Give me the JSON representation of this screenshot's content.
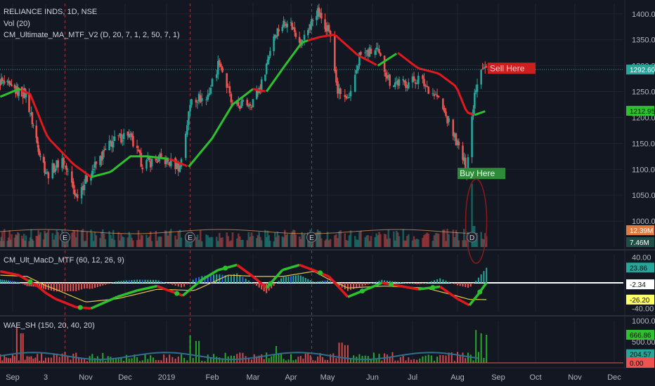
{
  "header": {
    "symbol": "RELIANCE INDS, 1D, NSE",
    "volume_label": "Vol (20)",
    "ma_label": "CM_Ultimate_MA_MTF_V2 (D, 20, 7, 1, 2, 50, 7, 1)"
  },
  "colors": {
    "background": "#131722",
    "grid": "#1f2431",
    "up": "#26a69a",
    "down": "#ef5350",
    "ma_red": "#e0191e",
    "ma_green": "#2dc22d",
    "sell": "#cc1f1f",
    "buy": "#2e8b3a"
  },
  "chart_data": [
    {
      "type": "candlestick",
      "title": "RELIANCE INDS, 1D, NSE",
      "ylim": [
        950,
        1420
      ],
      "y_ticks": [
        "1400.00",
        "1350.00",
        "1300.00",
        "1250.00",
        "1200.00",
        "1150.00",
        "1100.00",
        "1050.00",
        "1000.00"
      ],
      "y_tick_values": [
        1400,
        1350,
        1300,
        1250,
        1200,
        1150,
        1100,
        1050,
        1000
      ],
      "x_ticks": [
        "Sep",
        "3",
        "Nov",
        "Dec",
        "2019",
        "Feb",
        "Mar",
        "Apr",
        "May",
        "Jun",
        "Jul",
        "Aug",
        "Sep",
        "Oct",
        "Nov",
        "Dec"
      ],
      "last_price_label": "1292.60",
      "last_price": 1292.6,
      "ma_value_label": "1212.95",
      "ma_value": 1212.95,
      "close_path": [
        {
          "date": "2018-08-20",
          "close": 1270
        },
        {
          "date": "2018-08-31",
          "close": 1255
        },
        {
          "date": "2018-09-14",
          "close": 1245
        },
        {
          "date": "2018-09-25",
          "close": 1150
        },
        {
          "date": "2018-10-04",
          "close": 1090
        },
        {
          "date": "2018-10-15",
          "close": 1120
        },
        {
          "date": "2018-10-25",
          "close": 1050
        },
        {
          "date": "2018-11-05",
          "close": 1095
        },
        {
          "date": "2018-11-20",
          "close": 1150
        },
        {
          "date": "2018-12-03",
          "close": 1170
        },
        {
          "date": "2018-12-14",
          "close": 1110
        },
        {
          "date": "2018-12-28",
          "close": 1120
        },
        {
          "date": "2019-01-10",
          "close": 1105
        },
        {
          "date": "2019-01-18",
          "close": 1240
        },
        {
          "date": "2019-01-28",
          "close": 1235
        },
        {
          "date": "2019-02-06",
          "close": 1310
        },
        {
          "date": "2019-02-15",
          "close": 1220
        },
        {
          "date": "2019-02-28",
          "close": 1230
        },
        {
          "date": "2019-03-08",
          "close": 1265
        },
        {
          "date": "2019-03-18",
          "close": 1360
        },
        {
          "date": "2019-03-29",
          "close": 1390
        },
        {
          "date": "2019-04-10",
          "close": 1345
        },
        {
          "date": "2019-04-22",
          "close": 1405
        },
        {
          "date": "2019-05-02",
          "close": 1370
        },
        {
          "date": "2019-05-08",
          "close": 1250
        },
        {
          "date": "2019-05-16",
          "close": 1230
        },
        {
          "date": "2019-05-23",
          "close": 1320
        },
        {
          "date": "2019-06-04",
          "close": 1330
        },
        {
          "date": "2019-06-14",
          "close": 1270
        },
        {
          "date": "2019-06-25",
          "close": 1265
        },
        {
          "date": "2019-07-05",
          "close": 1275
        },
        {
          "date": "2019-07-18",
          "close": 1240
        },
        {
          "date": "2019-07-29",
          "close": 1170
        },
        {
          "date": "2019-08-05",
          "close": 1120
        },
        {
          "date": "2019-08-08",
          "close": 1100
        },
        {
          "date": "2019-08-14",
          "close": 1250
        },
        {
          "date": "2019-08-19",
          "close": 1300
        },
        {
          "date": "2019-08-23",
          "close": 1292.6
        }
      ],
      "ma_path": [
        {
          "date": "2018-08-20",
          "value": 1240
        },
        {
          "date": "2018-09-07",
          "value": 1255
        },
        {
          "date": "2018-09-18",
          "value": 1245
        },
        {
          "date": "2018-10-05",
          "value": 1160
        },
        {
          "date": "2018-10-23",
          "value": 1110
        },
        {
          "date": "2018-11-05",
          "value": 1085
        },
        {
          "date": "2018-11-20",
          "value": 1095
        },
        {
          "date": "2018-12-05",
          "value": 1125
        },
        {
          "date": "2018-12-18",
          "value": 1125
        },
        {
          "date": "2019-01-03",
          "value": 1120
        },
        {
          "date": "2019-01-16",
          "value": 1105
        },
        {
          "date": "2019-02-01",
          "value": 1160
        },
        {
          "date": "2019-02-15",
          "value": 1225
        },
        {
          "date": "2019-03-01",
          "value": 1255
        },
        {
          "date": "2019-03-12",
          "value": 1250
        },
        {
          "date": "2019-03-27",
          "value": 1300
        },
        {
          "date": "2019-04-10",
          "value": 1345
        },
        {
          "date": "2019-04-24",
          "value": 1355
        },
        {
          "date": "2019-05-06",
          "value": 1360
        },
        {
          "date": "2019-05-22",
          "value": 1320
        },
        {
          "date": "2019-06-05",
          "value": 1300
        },
        {
          "date": "2019-06-20",
          "value": 1325
        },
        {
          "date": "2019-07-05",
          "value": 1295
        },
        {
          "date": "2019-07-19",
          "value": 1285
        },
        {
          "date": "2019-07-31",
          "value": 1260
        },
        {
          "date": "2019-08-08",
          "value": 1210
        },
        {
          "date": "2019-08-14",
          "value": 1205
        },
        {
          "date": "2019-08-23",
          "value": 1212.95
        }
      ],
      "ma_color_segments": [
        {
          "from": "2018-08-20",
          "to": "2018-09-10",
          "color": "green"
        },
        {
          "from": "2018-09-10",
          "to": "2018-11-05",
          "color": "red"
        },
        {
          "from": "2018-11-05",
          "to": "2019-01-03",
          "color": "green"
        },
        {
          "from": "2019-01-03",
          "to": "2019-01-16",
          "color": "red"
        },
        {
          "from": "2019-01-16",
          "to": "2019-03-01",
          "color": "green"
        },
        {
          "from": "2019-03-01",
          "to": "2019-03-12",
          "color": "red"
        },
        {
          "from": "2019-03-12",
          "to": "2019-04-15",
          "color": "green"
        },
        {
          "from": "2019-04-15",
          "to": "2019-06-05",
          "color": "red"
        },
        {
          "from": "2019-06-05",
          "to": "2019-06-20",
          "color": "green"
        },
        {
          "from": "2019-06-20",
          "to": "2019-08-14",
          "color": "red"
        },
        {
          "from": "2019-08-14",
          "to": "2019-08-23",
          "color": "green"
        }
      ],
      "annotations": [
        {
          "text": "Sell Here",
          "date": "2019-08-24",
          "price": 1295,
          "kind": "sell"
        },
        {
          "text": "Buy Here",
          "date": "2019-08-08",
          "price": 1092,
          "kind": "buy"
        }
      ],
      "event_markers": [
        {
          "label": "E",
          "date": "2018-10-17"
        },
        {
          "label": "E",
          "date": "2019-01-17"
        },
        {
          "label": "E",
          "date": "2019-04-18"
        },
        {
          "label": "D",
          "date": "2019-08-12"
        }
      ],
      "earnings_lines": [
        "2018-10-17",
        "2019-01-17",
        "2019-04-18"
      ],
      "volume": {
        "last_labels": [
          "12.39M",
          "7.46M"
        ],
        "spike_date": "2019-08-12"
      }
    },
    {
      "type": "oscillator",
      "title": "CM_Ult_MacD_MTF (60, 12, 26, 9)",
      "ylim": [
        -45,
        45
      ],
      "y_ticks": [
        "40.00",
        "-40.00"
      ],
      "y_tick_values": [
        40,
        -40
      ],
      "value_labels": [
        {
          "text": "23.86",
          "value": 23.86,
          "color": "#26a69a"
        },
        {
          "text": "-2.34",
          "value": -2.34,
          "color": "#ffffff"
        },
        {
          "text": "-26.20",
          "value": -26.2,
          "color": "#ffff66"
        }
      ],
      "zero_line": 0,
      "macd_path": [
        {
          "date": "2018-08-20",
          "value": 18
        },
        {
          "date": "2018-09-07",
          "value": 12
        },
        {
          "date": "2018-09-25",
          "value": -5
        },
        {
          "date": "2018-10-10",
          "value": -25
        },
        {
          "date": "2018-10-25",
          "value": -38
        },
        {
          "date": "2018-11-05",
          "value": -40
        },
        {
          "date": "2018-11-25",
          "value": -22
        },
        {
          "date": "2018-12-10",
          "value": -12
        },
        {
          "date": "2018-12-25",
          "value": -5
        },
        {
          "date": "2019-01-12",
          "value": -20
        },
        {
          "date": "2019-01-25",
          "value": 5
        },
        {
          "date": "2019-02-05",
          "value": 20
        },
        {
          "date": "2019-02-18",
          "value": 28
        },
        {
          "date": "2019-03-01",
          "value": 10
        },
        {
          "date": "2019-03-12",
          "value": -8
        },
        {
          "date": "2019-03-25",
          "value": 20
        },
        {
          "date": "2019-04-08",
          "value": 28
        },
        {
          "date": "2019-04-22",
          "value": 18
        },
        {
          "date": "2019-05-02",
          "value": 10
        },
        {
          "date": "2019-05-15",
          "value": -22
        },
        {
          "date": "2019-05-28",
          "value": -10
        },
        {
          "date": "2019-06-08",
          "value": 0
        },
        {
          "date": "2019-06-22",
          "value": -5
        },
        {
          "date": "2019-07-05",
          "value": -10
        },
        {
          "date": "2019-07-20",
          "value": -6
        },
        {
          "date": "2019-08-01",
          "value": -25
        },
        {
          "date": "2019-08-10",
          "value": -35
        },
        {
          "date": "2019-08-16",
          "value": -20
        },
        {
          "date": "2019-08-23",
          "value": 0
        }
      ],
      "signal_path": [
        {
          "date": "2018-08-20",
          "value": 12
        },
        {
          "date": "2018-09-15",
          "value": 10
        },
        {
          "date": "2018-10-10",
          "value": -10
        },
        {
          "date": "2018-11-01",
          "value": -30
        },
        {
          "date": "2018-11-25",
          "value": -25
        },
        {
          "date": "2018-12-25",
          "value": -10
        },
        {
          "date": "2019-01-20",
          "value": -12
        },
        {
          "date": "2019-02-12",
          "value": 12
        },
        {
          "date": "2019-03-05",
          "value": 10
        },
        {
          "date": "2019-03-25",
          "value": 10
        },
        {
          "date": "2019-04-20",
          "value": 18
        },
        {
          "date": "2019-05-15",
          "value": -8
        },
        {
          "date": "2019-06-10",
          "value": -5
        },
        {
          "date": "2019-07-10",
          "value": -8
        },
        {
          "date": "2019-08-10",
          "value": -26
        },
        {
          "date": "2019-08-23",
          "value": -26.2
        }
      ],
      "crossover_dates": [
        "2018-09-18",
        "2018-10-28",
        "2019-01-08",
        "2019-02-10",
        "2019-03-15",
        "2019-04-25",
        "2019-05-25",
        "2019-06-15",
        "2019-07-15",
        "2019-08-18"
      ]
    },
    {
      "type": "bar",
      "title": "WAE_SH (150, 20, 40, 20)",
      "ylim": [
        0,
        1000
      ],
      "y_ticks": [
        "1000.00",
        "500.00"
      ],
      "y_tick_values": [
        1000,
        500
      ],
      "value_labels": [
        {
          "text": "666.86",
          "value": 666.86,
          "color": "#2dc22d"
        },
        {
          "text": "204.57",
          "value": 204.57,
          "color": "#26a69a"
        },
        {
          "text": "0.00",
          "value": 0,
          "color": "#ef5350"
        }
      ],
      "highlights": [
        {
          "date": "2018-09-05",
          "value": 850,
          "color": "red"
        },
        {
          "date": "2018-09-10",
          "value": 700,
          "color": "red"
        },
        {
          "date": "2019-01-17",
          "value": 650,
          "color": "green"
        },
        {
          "date": "2019-01-22",
          "value": 520,
          "color": "green"
        },
        {
          "date": "2019-03-20",
          "value": 400,
          "color": "green"
        },
        {
          "date": "2019-05-10",
          "value": 480,
          "color": "red"
        },
        {
          "date": "2019-05-14",
          "value": 420,
          "color": "red"
        },
        {
          "date": "2019-08-15",
          "value": 780,
          "color": "green"
        },
        {
          "date": "2019-08-19",
          "value": 700,
          "color": "green"
        },
        {
          "date": "2019-08-23",
          "value": 666.86,
          "color": "green"
        }
      ],
      "explosion_line_level": 204.57
    }
  ]
}
